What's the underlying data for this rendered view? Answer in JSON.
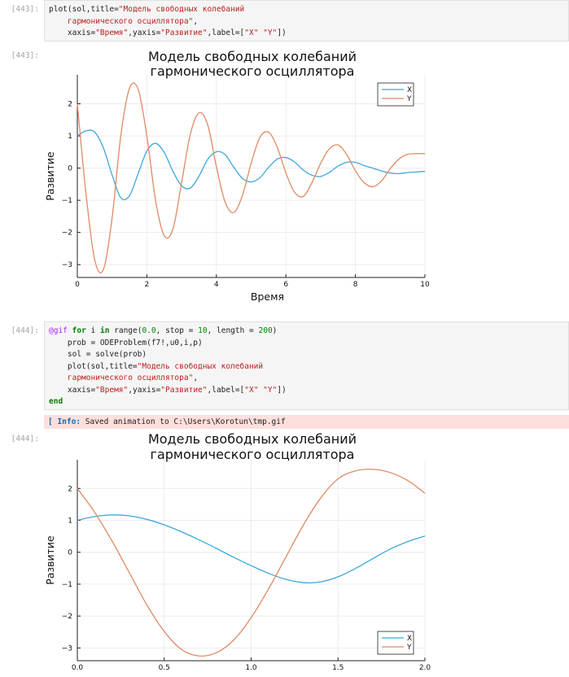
{
  "cells": [
    {
      "prompt_in": "[443]:",
      "prompt_out": "[443]:",
      "code_lines": [
        [
          {
            "t": "plot(sol,title=",
            "c": ""
          },
          {
            "t": "\"Модель свободных колебаний",
            "c": "s"
          }
        ],
        [
          {
            "t": "    гармонического осциллятора\"",
            "c": "s"
          },
          {
            "t": ",",
            "c": ""
          }
        ],
        [
          {
            "t": "    xaxis=",
            "c": ""
          },
          {
            "t": "\"Время\"",
            "c": "s"
          },
          {
            "t": ",yaxis=",
            "c": ""
          },
          {
            "t": "\"Развитие\"",
            "c": "s"
          },
          {
            "t": ",label=[",
            "c": ""
          },
          {
            "t": "\"X\" \"Y\"",
            "c": "s"
          },
          {
            "t": "])",
            "c": ""
          }
        ]
      ]
    },
    {
      "prompt_in": "[444]:",
      "prompt_out": "[444]:",
      "code_lines": [
        [
          {
            "t": "@gif",
            "c": "m"
          },
          {
            "t": " ",
            "c": ""
          },
          {
            "t": "for",
            "c": "k"
          },
          {
            "t": " i ",
            "c": ""
          },
          {
            "t": "in",
            "c": "k"
          },
          {
            "t": " range(",
            "c": ""
          },
          {
            "t": "0.0",
            "c": "n"
          },
          {
            "t": ", stop = ",
            "c": ""
          },
          {
            "t": "10",
            "c": "n"
          },
          {
            "t": ", length = ",
            "c": ""
          },
          {
            "t": "200",
            "c": "n"
          },
          {
            "t": ")",
            "c": ""
          }
        ],
        [
          {
            "t": "    prob = ODEProblem(f7!,u0,i,p)",
            "c": ""
          }
        ],
        [
          {
            "t": "    sol = solve(prob)",
            "c": ""
          }
        ],
        [
          {
            "t": "    plot(sol,title=",
            "c": ""
          },
          {
            "t": "\"Модель свободных колебаний",
            "c": "s"
          }
        ],
        [
          {
            "t": "    гармонического осциллятора\"",
            "c": "s"
          },
          {
            "t": ",",
            "c": ""
          }
        ],
        [
          {
            "t": "    xaxis=",
            "c": ""
          },
          {
            "t": "\"Время\"",
            "c": "s"
          },
          {
            "t": ",yaxis=",
            "c": ""
          },
          {
            "t": "\"Развитие\"",
            "c": "s"
          },
          {
            "t": ",label=[",
            "c": ""
          },
          {
            "t": "\"X\" \"Y\"",
            "c": "s"
          },
          {
            "t": "])",
            "c": ""
          }
        ],
        [
          {
            "t": "end",
            "c": "k"
          }
        ]
      ],
      "info_tag": "[ Info:",
      "info_text": " Saved animation to C:\\Users\\Korotun\\tmp.gif"
    }
  ],
  "colors": {
    "x_series": "#3fa8dc",
    "y_series": "#df8a63",
    "grid": "#ececec"
  },
  "chart_data": [
    {
      "type": "line",
      "title_line1": "Модель свободных колебаний",
      "title_line2": "гармонического осциллятора",
      "xlabel": "Время",
      "ylabel": "Развитие",
      "xlim": [
        0,
        10
      ],
      "ylim": [
        -3.4,
        2.9
      ],
      "xticks": [
        0,
        2,
        4,
        6,
        8,
        10
      ],
      "xtick_labels": [
        "0",
        "2",
        "4",
        "6",
        "8",
        "10"
      ],
      "yticks": [
        -3,
        -2,
        -1,
        0,
        1,
        2
      ],
      "ytick_labels": [
        "−3",
        "−2",
        "−1",
        "0",
        "1",
        "2"
      ],
      "grid": true,
      "legend": "top-right",
      "series": [
        {
          "name": "X",
          "x": [
            0,
            0.25,
            0.5,
            0.75,
            1,
            1.25,
            1.5,
            1.75,
            2,
            2.25,
            2.5,
            2.75,
            3,
            3.25,
            3.5,
            3.75,
            4,
            4.25,
            4.5,
            4.75,
            5,
            5.25,
            5.5,
            5.75,
            6,
            6.25,
            6.5,
            6.75,
            7,
            7.25,
            7.5,
            7.75,
            8,
            8.25,
            8.5,
            8.75,
            9,
            9.25,
            9.5,
            9.75,
            10
          ],
          "y": [
            1.0,
            1.16,
            1.12,
            0.63,
            -0.21,
            -0.92,
            -0.86,
            -0.17,
            0.53,
            0.77,
            0.49,
            -0.1,
            -0.55,
            -0.62,
            -0.25,
            0.27,
            0.51,
            0.42,
            0.03,
            -0.32,
            -0.43,
            -0.3,
            0.02,
            0.28,
            0.33,
            0.19,
            -0.06,
            -0.22,
            -0.26,
            -0.13,
            0.06,
            0.18,
            0.18,
            0.08,
            0.0,
            -0.09,
            -0.15,
            -0.17,
            -0.14,
            -0.12,
            -0.1
          ]
        },
        {
          "name": "Y",
          "x": [
            0,
            0.25,
            0.5,
            0.75,
            1,
            1.25,
            1.5,
            1.75,
            2,
            2.25,
            2.5,
            2.75,
            3,
            3.25,
            3.5,
            3.75,
            4,
            4.25,
            4.5,
            4.75,
            5,
            5.25,
            5.5,
            5.75,
            6,
            6.25,
            6.5,
            6.75,
            7,
            7.25,
            7.5,
            7.75,
            8,
            8.25,
            8.5,
            8.75,
            9,
            9.25,
            9.5,
            9.75,
            10
          ],
          "y": [
            2.0,
            -0.8,
            -2.85,
            -3.15,
            -1.55,
            1.0,
            2.48,
            2.45,
            1.0,
            -1.0,
            -2.1,
            -1.9,
            -0.45,
            1.05,
            1.72,
            1.35,
            0.05,
            -1.05,
            -1.38,
            -0.85,
            0.15,
            0.95,
            1.12,
            0.65,
            -0.15,
            -0.75,
            -0.88,
            -0.45,
            0.15,
            0.6,
            0.72,
            0.42,
            -0.08,
            -0.45,
            -0.58,
            -0.4,
            -0.02,
            0.28,
            0.43,
            0.45,
            0.45
          ]
        }
      ]
    },
    {
      "type": "line",
      "title_line1": "Модель свободных колебаний",
      "title_line2": "гармонического осциллятора",
      "xlabel": "",
      "ylabel": "Развитие",
      "xlim": [
        0,
        2
      ],
      "ylim": [
        -3.4,
        2.9
      ],
      "xticks": [
        0,
        0.5,
        1,
        1.5,
        2
      ],
      "xtick_labels": [
        "0.0",
        "0.5",
        "1.0",
        "1.5",
        "2.0"
      ],
      "yticks": [
        -3,
        -2,
        -1,
        0,
        1,
        2
      ],
      "ytick_labels": [
        "−3",
        "−2",
        "−1",
        "0",
        "1",
        "2"
      ],
      "grid": true,
      "legend": "bottom-right",
      "series": [
        {
          "name": "X",
          "x": [
            0,
            0.1,
            0.2,
            0.3,
            0.4,
            0.5,
            0.6,
            0.7,
            0.8,
            0.9,
            1.0,
            1.1,
            1.2,
            1.3,
            1.4,
            1.5,
            1.6,
            1.7,
            1.8,
            1.9,
            2.0
          ],
          "y": [
            1.0,
            1.12,
            1.17,
            1.14,
            1.03,
            0.86,
            0.64,
            0.39,
            0.12,
            -0.16,
            -0.42,
            -0.66,
            -0.85,
            -0.95,
            -0.93,
            -0.77,
            -0.51,
            -0.2,
            0.1,
            0.33,
            0.51
          ]
        },
        {
          "name": "Y",
          "x": [
            0,
            0.1,
            0.2,
            0.3,
            0.4,
            0.5,
            0.6,
            0.7,
            0.8,
            0.9,
            1.0,
            1.1,
            1.2,
            1.3,
            1.4,
            1.5,
            1.6,
            1.7,
            1.8,
            1.9,
            2.0
          ],
          "y": [
            2.0,
            1.25,
            0.35,
            -0.65,
            -1.65,
            -2.48,
            -3.05,
            -3.25,
            -3.15,
            -2.75,
            -2.05,
            -1.15,
            -0.15,
            0.85,
            1.7,
            2.3,
            2.55,
            2.6,
            2.5,
            2.25,
            1.85
          ]
        }
      ]
    }
  ]
}
